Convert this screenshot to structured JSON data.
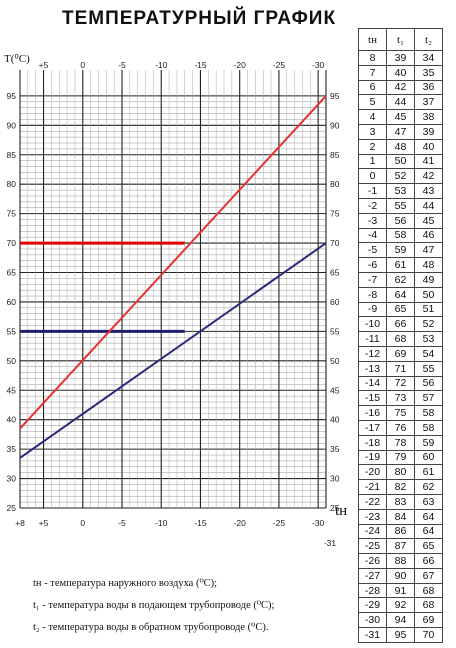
{
  "title": "ТЕМПЕРАТУРНЫЙ ГРАФИК",
  "chart_data": {
    "type": "line",
    "ylabel": "T(⁰С)",
    "xlabel": "tн",
    "xlim": [
      8,
      -31
    ],
    "ylim": [
      25,
      96
    ],
    "x_ticks": [
      {
        "label": "+8",
        "value": 8
      },
      {
        "label": "+5",
        "value": 5
      },
      {
        "label": "0",
        "value": 0
      },
      {
        "label": "-5",
        "value": -5
      },
      {
        "label": "-10",
        "value": -10
      },
      {
        "label": "-15",
        "value": -15
      },
      {
        "label": "-20",
        "value": -20
      },
      {
        "label": "-25",
        "value": -25
      },
      {
        "label": "-30",
        "value": -30
      },
      {
        "label": "-31",
        "value": -31
      }
    ],
    "y_ticks": [
      25,
      30,
      35,
      40,
      45,
      50,
      55,
      60,
      65,
      70,
      75,
      80,
      85,
      90,
      95
    ],
    "grid": true,
    "series": [
      {
        "color": "#e83030",
        "x": [
          8,
          -31
        ],
        "y": [
          38.5,
          95
        ]
      },
      {
        "color": "#2a2a7a",
        "x": [
          8,
          -31
        ],
        "y": [
          33.5,
          70
        ]
      }
    ],
    "annotations": [
      {
        "type": "hline",
        "y": 70,
        "x_to": -13,
        "color": "#e00000"
      },
      {
        "type": "hline",
        "y": 55,
        "x_to": -13,
        "color": "#20206a"
      }
    ]
  },
  "legend": [
    {
      "sym": "tн",
      "text": " - температура наружного воздуха (⁰С);"
    },
    {
      "sym": "t₁",
      "text": " - температура воды в подающем трубопроводе (⁰С);"
    },
    {
      "sym": "t₂",
      "text": " - температура воды в обратном трубопроводе (⁰С)."
    }
  ],
  "table": {
    "headers": [
      "tн",
      "t₁",
      "t₂"
    ],
    "rows": [
      [
        "8",
        "39",
        "34"
      ],
      [
        "7",
        "40",
        "35"
      ],
      [
        "6",
        "42",
        "36"
      ],
      [
        "5",
        "44",
        "37"
      ],
      [
        "4",
        "45",
        "38"
      ],
      [
        "3",
        "47",
        "39"
      ],
      [
        "2",
        "48",
        "40"
      ],
      [
        "1",
        "50",
        "41"
      ],
      [
        "0",
        "52",
        "42"
      ],
      [
        "-1",
        "53",
        "43"
      ],
      [
        "-2",
        "55",
        "44"
      ],
      [
        "-3",
        "56",
        "45"
      ],
      [
        "-4",
        "58",
        "46"
      ],
      [
        "-5",
        "59",
        "47"
      ],
      [
        "-6",
        "61",
        "48"
      ],
      [
        "-7",
        "62",
        "49"
      ],
      [
        "-8",
        "64",
        "50"
      ],
      [
        "-9",
        "65",
        "51"
      ],
      [
        "-10",
        "66",
        "52"
      ],
      [
        "-11",
        "68",
        "53"
      ],
      [
        "-12",
        "69",
        "54"
      ],
      [
        "-13",
        "71",
        "55"
      ],
      [
        "-14",
        "72",
        "56"
      ],
      [
        "-15",
        "73",
        "57"
      ],
      [
        "-16",
        "75",
        "58"
      ],
      [
        "-17",
        "76",
        "58"
      ],
      [
        "-18",
        "78",
        "59"
      ],
      [
        "-19",
        "79",
        "60"
      ],
      [
        "-20",
        "80",
        "61"
      ],
      [
        "-21",
        "82",
        "62"
      ],
      [
        "-22",
        "83",
        "63"
      ],
      [
        "-23",
        "84",
        "64"
      ],
      [
        "-24",
        "86",
        "64"
      ],
      [
        "-25",
        "87",
        "65"
      ],
      [
        "-26",
        "88",
        "66"
      ],
      [
        "-27",
        "90",
        "67"
      ],
      [
        "-28",
        "91",
        "68"
      ],
      [
        "-29",
        "92",
        "68"
      ],
      [
        "-30",
        "94",
        "69"
      ],
      [
        "-31",
        "95",
        "70"
      ]
    ]
  }
}
